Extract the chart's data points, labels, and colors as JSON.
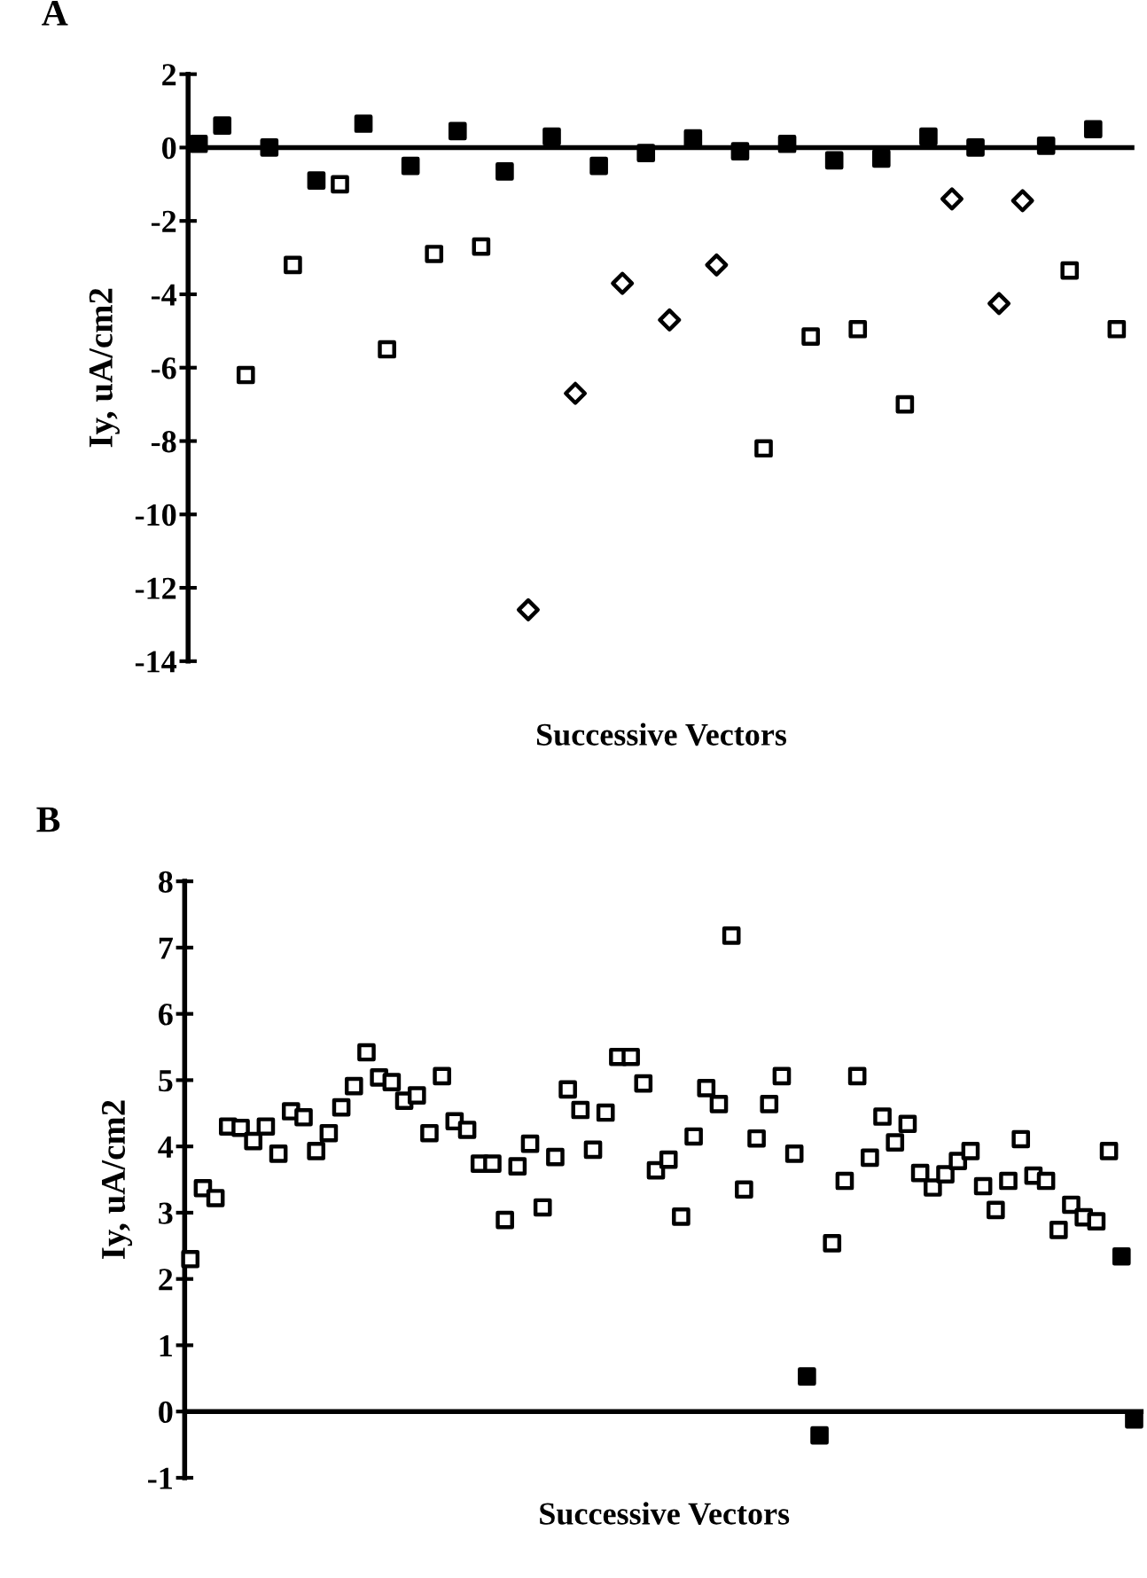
{
  "chart_data": [
    {
      "type": "scatter",
      "title": "A",
      "xlabel": "Successive Vectors",
      "ylabel": "Iy, uA/cm2",
      "categories": [
        null,
        null,
        null,
        null,
        null,
        null,
        null,
        null,
        null,
        null,
        null,
        null,
        null,
        null,
        null,
        null,
        null,
        null,
        null,
        null,
        null,
        null,
        null,
        null,
        null,
        null,
        null,
        null,
        null,
        null,
        null,
        null,
        null,
        null,
        null,
        null,
        null,
        null,
        null,
        null
      ],
      "series": [
        {
          "color": "#000000",
          "marker": "square",
          "values": [
            0.1,
            0.6,
            null,
            0,
            null,
            -0.9,
            null,
            0.65,
            null,
            -0.5,
            null,
            0.45,
            null,
            -0.65,
            null,
            0.3,
            null,
            -0.5,
            null,
            -0.15,
            null,
            0.25,
            null,
            -0.1,
            null,
            0.1,
            null,
            -0.35,
            null,
            -0.3,
            null,
            0.3,
            null,
            0,
            null,
            null,
            0.05,
            null,
            0.5,
            null
          ]
        },
        {
          "color": "#ffffff",
          "marker": "square",
          "values": [
            null,
            null,
            -6.2,
            null,
            -3.2,
            null,
            -1.0,
            null,
            -5.5,
            null,
            -2.9,
            null,
            -2.7,
            null,
            null,
            null,
            null,
            null,
            null,
            null,
            null,
            null,
            null,
            null,
            -8.2,
            null,
            -5.15,
            null,
            -4.95,
            null,
            -7.0,
            null,
            null,
            null,
            null,
            null,
            null,
            -3.35,
            null,
            -4.95
          ]
        },
        {
          "color": "#ffffff",
          "marker": "diamond",
          "values": [
            null,
            null,
            null,
            null,
            null,
            null,
            null,
            null,
            null,
            null,
            null,
            null,
            null,
            null,
            -12.6,
            null,
            -6.7,
            null,
            -3.7,
            null,
            -4.7,
            null,
            -3.2,
            null,
            null,
            null,
            null,
            null,
            null,
            null,
            null,
            null,
            -1.4,
            null,
            -4.25,
            -1.45,
            null,
            null,
            null,
            null
          ]
        }
      ],
      "ylim": [
        -14,
        2
      ],
      "yticks": [
        -14,
        -12,
        -10,
        -8,
        -6,
        -4,
        -2,
        0,
        2
      ],
      "ref_lines": [
        {
          "axis": "y",
          "value": 0,
          "color": "#000000"
        }
      ],
      "tick_labels": "y",
      "grid": false,
      "legend": false
    },
    {
      "type": "scatter",
      "title": "B",
      "xlabel": "Successive Vectors",
      "ylabel": "Iy, uA/cm2",
      "categories": [
        null,
        null,
        null,
        null,
        null,
        null,
        null,
        null,
        null,
        null,
        null,
        null,
        null,
        null,
        null,
        null,
        null,
        null,
        null,
        null,
        null,
        null,
        null,
        null,
        null,
        null,
        null,
        null,
        null,
        null,
        null,
        null,
        null,
        null,
        null,
        null,
        null,
        null,
        null,
        null,
        null,
        null,
        null,
        null,
        null,
        null,
        null,
        null,
        null,
        null,
        null,
        null,
        null,
        null,
        null,
        null,
        null,
        null,
        null,
        null,
        null,
        null,
        null,
        null,
        null,
        null,
        null,
        null,
        null,
        null,
        null,
        null,
        null,
        null,
        null,
        null
      ],
      "series": [
        {
          "color": "#ffffff",
          "marker": "square",
          "values": [
            2.3,
            3.37,
            3.22,
            4.3,
            4.28,
            4.08,
            4.3,
            3.89,
            4.53,
            4.44,
            3.93,
            4.2,
            4.59,
            4.91,
            5.42,
            5.04,
            4.97,
            4.69,
            4.77,
            4.2,
            5.06,
            4.38,
            4.25,
            3.74,
            3.74,
            2.89,
            3.7,
            4.04,
            3.08,
            3.84,
            4.86,
            4.55,
            3.95,
            4.51,
            5.35,
            5.35,
            4.95,
            3.64,
            3.8,
            2.94,
            4.15,
            4.88,
            4.64,
            7.18,
            3.35,
            4.12,
            4.64,
            5.06,
            3.89,
            null,
            null,
            2.54,
            3.48,
            5.06,
            3.83,
            4.45,
            4.06,
            4.34,
            3.6,
            3.38,
            3.58,
            3.78,
            3.93,
            3.4,
            3.04,
            3.48,
            4.11,
            3.56,
            3.48,
            2.74,
            3.12,
            2.93,
            2.87,
            3.93,
            null,
            null
          ]
        },
        {
          "color": "#000000",
          "marker": "square",
          "values": [
            null,
            null,
            null,
            null,
            null,
            null,
            null,
            null,
            null,
            null,
            null,
            null,
            null,
            null,
            null,
            null,
            null,
            null,
            null,
            null,
            null,
            null,
            null,
            null,
            null,
            null,
            null,
            null,
            null,
            null,
            null,
            null,
            null,
            null,
            null,
            null,
            null,
            null,
            null,
            null,
            null,
            null,
            null,
            null,
            null,
            null,
            null,
            null,
            null,
            0.53,
            -0.36,
            null,
            null,
            null,
            null,
            null,
            null,
            null,
            null,
            null,
            null,
            null,
            null,
            null,
            null,
            null,
            null,
            null,
            null,
            null,
            null,
            null,
            null,
            null,
            2.34,
            -0.12
          ]
        }
      ],
      "ylim": [
        -1,
        8
      ],
      "yticks": [
        -1,
        0,
        1,
        2,
        3,
        4,
        5,
        6,
        7,
        8
      ],
      "ref_lines": [
        {
          "axis": "y",
          "value": 0,
          "color": "#000000"
        }
      ],
      "tick_labels": "y",
      "grid": false,
      "legend": false
    }
  ]
}
